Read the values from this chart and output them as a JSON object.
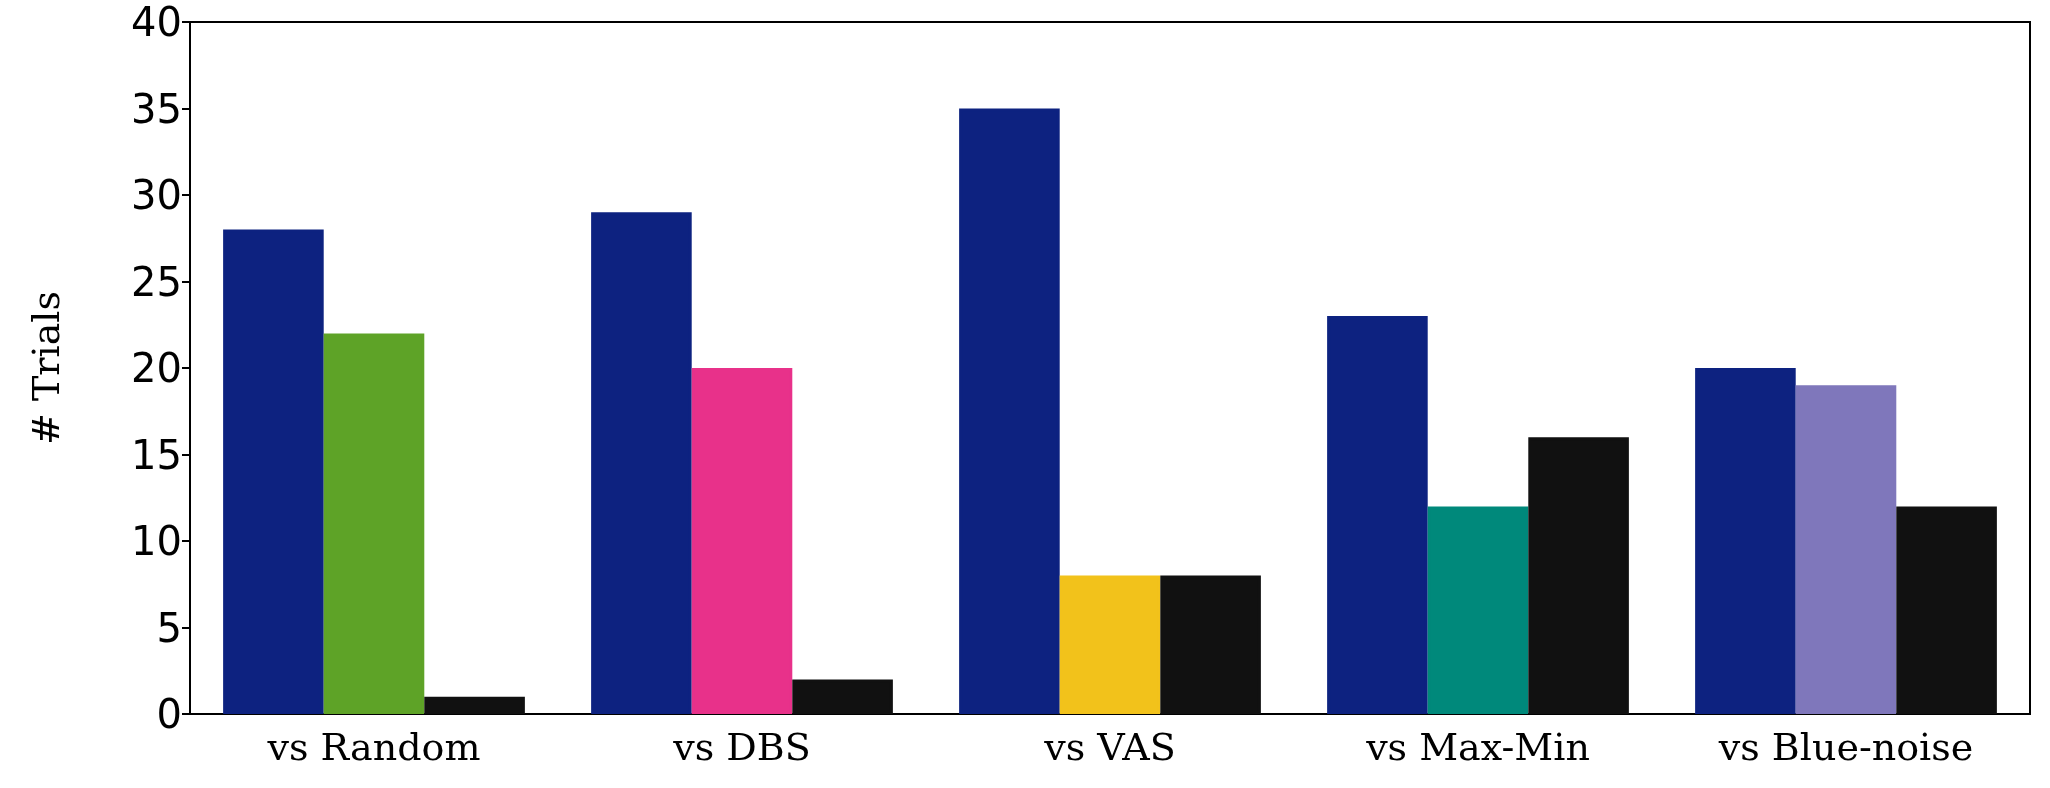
{
  "chart_data": {
    "type": "bar",
    "ylabel": "# Trials",
    "categories": [
      "vs Random",
      "vs DBS",
      "vs VAS",
      "vs Max-Min",
      "vs Blue-noise"
    ],
    "series": [
      {
        "color": "#0d2280",
        "values": [
          28,
          29,
          35,
          23,
          20
        ]
      },
      {
        "colors": [
          "#5ea327",
          "#e8318a",
          "#f2c21b",
          "#00897b",
          "#7f77bb"
        ],
        "values": [
          22,
          20,
          8,
          12,
          19
        ]
      },
      {
        "color": "#111111",
        "values": [
          1,
          2,
          8,
          16,
          12
        ]
      }
    ],
    "ylim": [
      0,
      40
    ],
    "yticks": [
      0,
      5,
      10,
      15,
      20,
      25,
      30,
      35,
      40
    ],
    "grid": false
  }
}
